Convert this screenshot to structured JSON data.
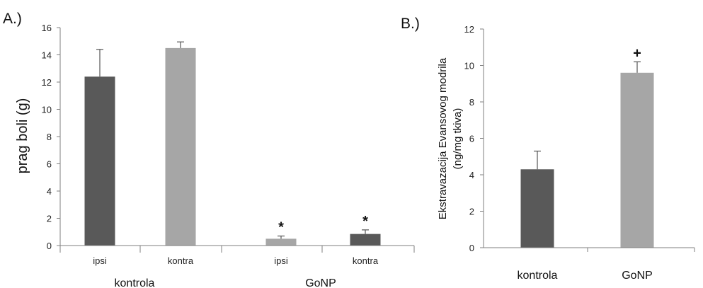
{
  "chart_data": [
    {
      "type": "bar",
      "panel_label": "A.)",
      "ylabel": "prag boli (g)",
      "ylim": [
        0,
        16
      ],
      "yticks": [
        0,
        2,
        4,
        6,
        8,
        10,
        12,
        14,
        16
      ],
      "groups": [
        "kontrola",
        "GoNP"
      ],
      "categories": [
        "ipsi",
        "kontra",
        "ipsi",
        "kontra"
      ],
      "category_group": [
        0,
        0,
        1,
        1
      ],
      "values": [
        12.4,
        14.5,
        0.5,
        0.85
      ],
      "errors": [
        2.0,
        0.45,
        0.2,
        0.3
      ],
      "colors": [
        "#595959",
        "#a6a6a6",
        "#a6a6a6",
        "#595959"
      ],
      "annotations": [
        "",
        "",
        "*",
        "*"
      ],
      "grid": false,
      "legend": "none"
    },
    {
      "type": "bar",
      "panel_label": "B.)",
      "ylabel_lines": [
        "Ekstravazacija Evansovog modrila",
        "(ng/mg tkiva)"
      ],
      "ylim": [
        0,
        12
      ],
      "yticks": [
        0,
        2,
        4,
        6,
        8,
        10,
        12
      ],
      "categories": [
        "kontrola",
        "GoNP"
      ],
      "values": [
        4.3,
        9.6
      ],
      "errors": [
        1.0,
        0.6
      ],
      "colors": [
        "#595959",
        "#a6a6a6"
      ],
      "annotations": [
        "",
        "+"
      ],
      "grid": false,
      "legend": "none"
    }
  ]
}
